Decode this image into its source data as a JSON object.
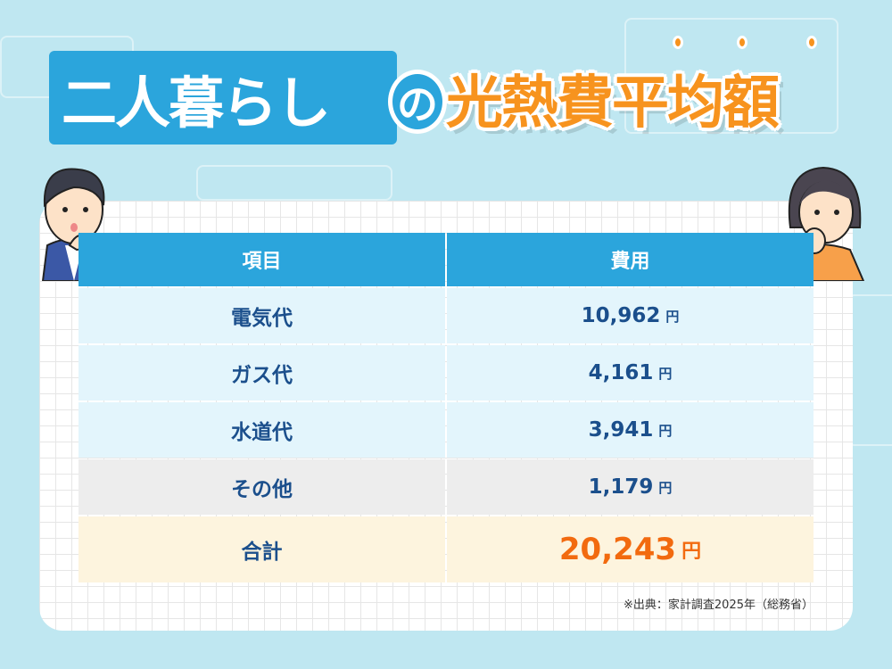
{
  "title": {
    "left": "二人暮らし",
    "connector": "の",
    "right": "光熱費平均額"
  },
  "table": {
    "headers": [
      "項目",
      "費用"
    ],
    "rows": [
      {
        "item": "電気代",
        "amount": "10,962",
        "unit": "円"
      },
      {
        "item": "ガス代",
        "amount": "4,161",
        "unit": "円"
      },
      {
        "item": "水道代",
        "amount": "3,941",
        "unit": "円"
      },
      {
        "item": "その他",
        "amount": "1,179",
        "unit": "円"
      }
    ],
    "total": {
      "item": "合計",
      "amount": "20,243",
      "unit": "円"
    }
  },
  "source": "※出典：家計調査2025年（総務省）",
  "colors": {
    "header": "#2ba5dc",
    "title_orange": "#f7931e",
    "total": "#f26a0f",
    "text": "#1b4f8c"
  }
}
